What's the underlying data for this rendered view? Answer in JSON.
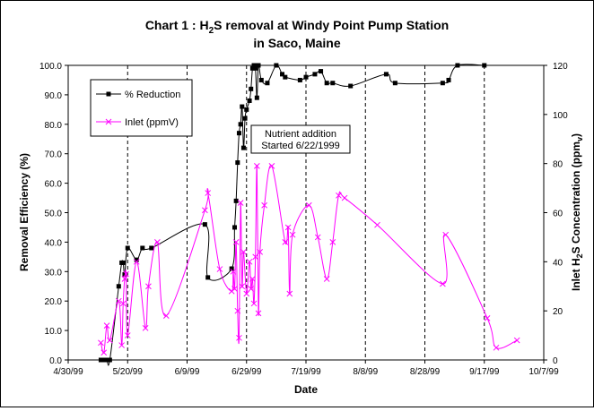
{
  "chart_data": {
    "type": "line",
    "title_line1_prefix": "Chart 1 : H",
    "title_line1_sub": "2",
    "title_line1_suffix": "S removal at Windy Point Pump Station",
    "title_line2": "in Saco, Maine",
    "xlabel": "Date",
    "ylabel_left": "Removal Efficiency (%)",
    "ylabel_right_prefix": "Inlet H",
    "ylabel_right_sub": "2",
    "ylabel_right_mid": "S Concentration (ppm",
    "ylabel_right_sub2": "v",
    "ylabel_right_suffix": ")",
    "x_ticks": [
      "4/30/99",
      "5/20/99",
      "6/9/99",
      "6/29/99",
      "7/19/99",
      "8/8/99",
      "8/28/99",
      "9/17/99",
      "10/7/99"
    ],
    "x_tick_days": [
      0,
      20,
      40,
      60,
      80,
      100,
      120,
      140,
      160
    ],
    "x_range_days": [
      0,
      160
    ],
    "y_left_ticks": [
      "0.0",
      "10.0",
      "20.0",
      "30.0",
      "40.0",
      "50.0",
      "60.0",
      "70.0",
      "80.0",
      "90.0",
      "100.0"
    ],
    "y_left_range": [
      0,
      100
    ],
    "y_right_ticks": [
      "0",
      "20",
      "40",
      "60",
      "80",
      "100",
      "120"
    ],
    "y_right_range": [
      0,
      120
    ],
    "grid": "vertical dashed at each x tick",
    "legend_placement": "upper-left",
    "annotation_line1": "Nutrient addition",
    "annotation_line2": "Started 6/22/1999",
    "series": [
      {
        "name": "% Reduction",
        "axis": "left",
        "color": "#000000",
        "marker": "square",
        "points": [
          [
            11,
            0
          ],
          [
            12,
            0
          ],
          [
            13,
            0
          ],
          [
            14,
            0
          ],
          [
            17,
            25
          ],
          [
            18,
            33
          ],
          [
            18.5,
            33
          ],
          [
            19,
            29
          ],
          [
            20,
            38
          ],
          [
            23,
            34
          ],
          [
            25,
            38
          ],
          [
            28,
            38
          ],
          [
            46,
            46
          ],
          [
            47,
            28
          ],
          [
            55,
            31
          ],
          [
            56,
            45
          ],
          [
            56.5,
            54
          ],
          [
            57,
            67
          ],
          [
            57.5,
            77
          ],
          [
            58,
            80
          ],
          [
            58.5,
            86
          ],
          [
            59,
            72
          ],
          [
            59.5,
            82
          ],
          [
            60,
            85
          ],
          [
            61,
            88
          ],
          [
            61.5,
            92
          ],
          [
            62,
            99
          ],
          [
            62.5,
            100
          ],
          [
            63,
            99
          ],
          [
            63.5,
            89
          ],
          [
            64,
            100
          ],
          [
            65,
            95
          ],
          [
            67,
            94
          ],
          [
            70,
            100
          ],
          [
            72,
            97
          ],
          [
            73,
            96
          ],
          [
            78,
            95
          ],
          [
            80,
            96
          ],
          [
            83,
            97
          ],
          [
            85,
            98
          ],
          [
            87,
            94
          ],
          [
            89,
            94
          ],
          [
            95,
            93
          ],
          [
            107,
            97
          ],
          [
            110,
            94
          ],
          [
            126,
            94
          ],
          [
            128,
            95
          ],
          [
            131,
            100
          ],
          [
            140,
            100
          ]
        ]
      },
      {
        "name": "Inlet (ppmV)",
        "axis": "right",
        "color": "#ff00ff",
        "marker": "x",
        "points": [
          [
            11,
            7
          ],
          [
            12,
            3
          ],
          [
            13,
            14
          ],
          [
            14,
            8
          ],
          [
            17,
            24
          ],
          [
            18,
            6
          ],
          [
            18.5,
            23
          ],
          [
            19,
            33
          ],
          [
            19.5,
            35
          ],
          [
            20,
            10
          ],
          [
            23,
            40
          ],
          [
            26,
            13
          ],
          [
            27,
            30
          ],
          [
            30,
            48
          ],
          [
            33,
            18
          ],
          [
            46,
            61
          ],
          [
            47,
            68
          ],
          [
            51,
            37
          ],
          [
            55,
            28
          ],
          [
            55.5,
            36
          ],
          [
            56,
            29
          ],
          [
            56.5,
            48
          ],
          [
            57,
            20
          ],
          [
            57.5,
            9
          ],
          [
            58,
            64
          ],
          [
            58.5,
            30
          ],
          [
            59,
            44
          ],
          [
            60,
            27
          ],
          [
            61,
            40
          ],
          [
            61.5,
            29
          ],
          [
            62,
            33
          ],
          [
            62.5,
            23
          ],
          [
            63,
            42
          ],
          [
            63.5,
            79
          ],
          [
            64,
            19
          ],
          [
            64.5,
            44
          ],
          [
            66,
            63
          ],
          [
            68.5,
            79
          ],
          [
            73,
            48
          ],
          [
            74,
            54
          ],
          [
            74.5,
            27
          ],
          [
            75.5,
            51
          ],
          [
            81,
            63
          ],
          [
            84,
            50
          ],
          [
            87,
            33
          ],
          [
            89,
            48
          ],
          [
            91,
            67
          ],
          [
            93,
            66
          ],
          [
            104,
            55
          ],
          [
            126,
            31
          ],
          [
            127,
            51
          ],
          [
            141,
            17
          ],
          [
            144,
            5
          ],
          [
            151,
            8
          ]
        ]
      }
    ]
  }
}
